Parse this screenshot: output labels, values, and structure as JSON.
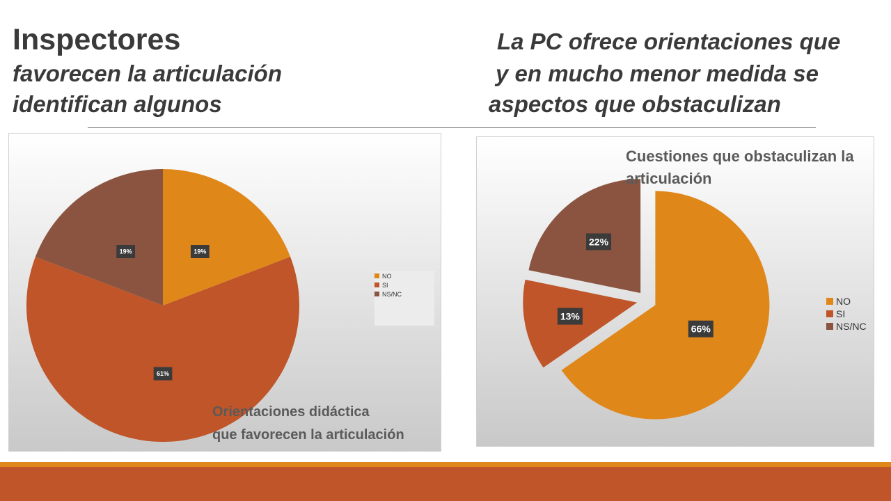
{
  "slide": {
    "left_title": {
      "line1": "Inspectores",
      "line2": "favorecen la articulación",
      "line3": "identifican algunos"
    },
    "right_title": {
      "line1": "La PC ofrece orientaciones que",
      "line2": "y en mucho menor medida se",
      "line3": "aspectos que obstaculizan"
    },
    "colors": {
      "accent_orange": "#e0871a",
      "accent_rust": "#bf5529",
      "brown": "#8a5440"
    }
  },
  "chart_data": [
    {
      "type": "pie",
      "title": "Orientaciones didáctica\nque favorecen la articulación",
      "title_lines": [
        "Orientaciones didáctica",
        "que favorecen la articulación"
      ],
      "title_position": "bottom-right",
      "categories": [
        "NO",
        "SI",
        "NS/NC"
      ],
      "values": [
        19,
        61,
        19
      ],
      "labels": [
        "19%",
        "61%",
        "19%"
      ],
      "colors": [
        "#e0871a",
        "#bf5529",
        "#8a5440"
      ],
      "exploded": false,
      "legend": "right"
    },
    {
      "type": "pie",
      "title": "Cuestiones que obstaculizan la\narticulación",
      "title_lines": [
        "Cuestiones que obstaculizan la",
        "articulación"
      ],
      "title_position": "top-right",
      "categories": [
        "NO",
        "SI",
        "NS/NC"
      ],
      "values": [
        66,
        13,
        22
      ],
      "labels": [
        "66%",
        "13%",
        "22%"
      ],
      "colors": [
        "#e0871a",
        "#bf5529",
        "#8a5440"
      ],
      "exploded": true,
      "legend": "right"
    }
  ]
}
